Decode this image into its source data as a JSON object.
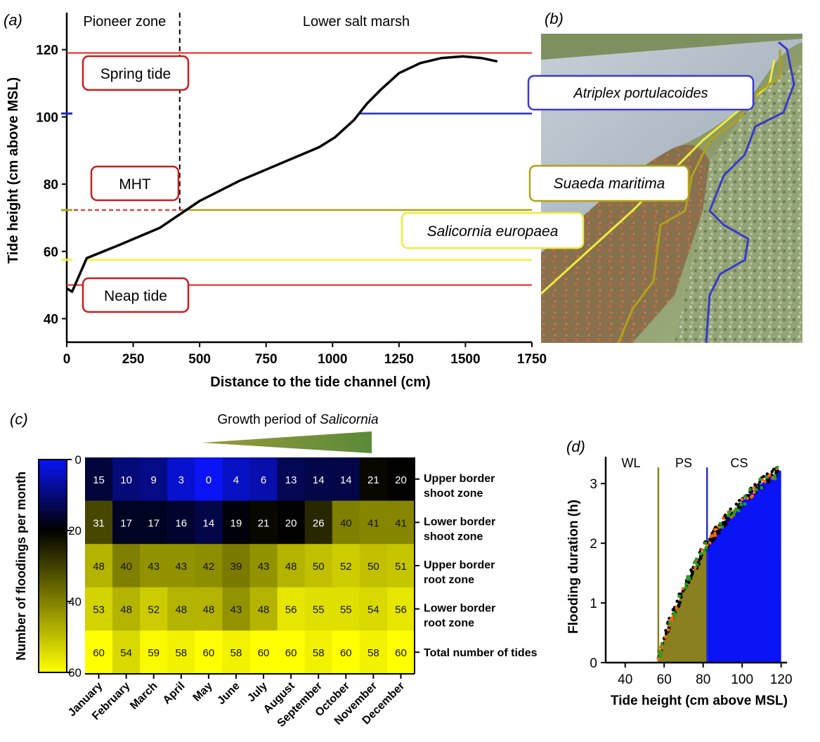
{
  "panel_labels": {
    "a": "(a)",
    "b": "(b)",
    "c": "(c)",
    "d": "(d)"
  },
  "chart_data": [
    {
      "id": "a",
      "type": "line",
      "xlabel": "Distance to the tide channel (cm)",
      "ylabel": "Tide height (cm above MSL)",
      "xlim": [
        0,
        1750
      ],
      "ylim": [
        33,
        131
      ],
      "xticks": [
        0,
        250,
        500,
        750,
        1000,
        1250,
        1500,
        1750
      ],
      "yticks": [
        40,
        60,
        80,
        100,
        120
      ],
      "zones": [
        {
          "label": "Pioneer zone"
        },
        {
          "label": "Lower salt marsh"
        }
      ],
      "zone_boundary_x": 425,
      "profile": {
        "x": [
          0,
          20,
          75,
          200,
          350,
          500,
          650,
          800,
          950,
          1010,
          1080,
          1130,
          1180,
          1250,
          1330,
          1410,
          1490,
          1560,
          1620
        ],
        "y": [
          49,
          48,
          58,
          62,
          67,
          75,
          81,
          86,
          91,
          94,
          99,
          104,
          108,
          113,
          116,
          117.5,
          118,
          117.5,
          116.5
        ]
      },
      "reference_lines": [
        {
          "label": "Spring tide",
          "y": 119,
          "color": "#e8261d",
          "style": "solid"
        },
        {
          "label": "MHT",
          "y": 72.3,
          "color": "#e8261d",
          "style": "dashed"
        },
        {
          "label": "Neap tide",
          "y": 50,
          "color": "#e8261d",
          "style": "solid"
        }
      ],
      "species_levels": [
        {
          "label": "Atriplex portulacoides",
          "y": 101,
          "x_start": 1100,
          "color": "#2030c8"
        },
        {
          "label": "Suaeda maritima",
          "y": 72.3,
          "x_start": 440,
          "color": "#b2a31a"
        },
        {
          "label": "Salicornia europaea",
          "y": 57.5,
          "x_start": 75,
          "color": "#f2f23a"
        }
      ]
    },
    {
      "id": "c",
      "type": "heatmap",
      "title_prefix": "Growth period of ",
      "title_italic": "Salicornia",
      "colorbar_label": "Number of floodings per month",
      "colorbar_ticks": [
        0,
        20,
        40,
        60
      ],
      "colorbar_range": [
        0,
        60
      ],
      "columns": [
        "January",
        "February",
        "March",
        "April",
        "May",
        "June",
        "July",
        "August",
        "September",
        "October",
        "November",
        "December"
      ],
      "rows": [
        {
          "label": [
            "Upper border",
            "shoot zone"
          ],
          "values": [
            15,
            10,
            9,
            3,
            0,
            4,
            6,
            13,
            14,
            14,
            21,
            20
          ]
        },
        {
          "label": [
            "Lower border",
            "shoot zone"
          ],
          "values": [
            31,
            17,
            17,
            16,
            14,
            19,
            21,
            20,
            26,
            40,
            41,
            41
          ]
        },
        {
          "label": [
            "Upper border",
            "root zone"
          ],
          "values": [
            48,
            40,
            43,
            43,
            42,
            39,
            43,
            48,
            50,
            52,
            50,
            51
          ]
        },
        {
          "label": [
            "Lower border",
            "root zone"
          ],
          "values": [
            53,
            48,
            52,
            48,
            48,
            43,
            48,
            56,
            55,
            55,
            54,
            56
          ]
        },
        {
          "label": [
            "Total number of tides"
          ],
          "values": [
            60,
            54,
            59,
            58,
            60,
            58,
            60,
            60,
            58,
            60,
            58,
            60
          ]
        }
      ]
    },
    {
      "id": "d",
      "type": "scatter",
      "xlabel": "Tide height (cm above MSL)",
      "ylabel": "Flooding duration (h)",
      "xlim": [
        30,
        123
      ],
      "ylim": [
        0,
        3.45
      ],
      "xticks": [
        40,
        60,
        80,
        100,
        120
      ],
      "yticks": [
        0,
        1,
        2,
        3
      ],
      "zones": [
        "WL",
        "PS",
        "CS"
      ],
      "zone_boundaries": [
        {
          "x": 57,
          "color": "#8a8020"
        },
        {
          "x": 82,
          "color": "#2a33c8"
        }
      ],
      "zone_fill_colors": [
        "#8a8020",
        "#0a14f5"
      ],
      "series": [
        {
          "color": "#000000"
        },
        {
          "color": "#ff6600"
        },
        {
          "color": "#22a022"
        }
      ],
      "curve": {
        "x": [
          56,
          57,
          58,
          60,
          62,
          65,
          68,
          70,
          72,
          75,
          78,
          80,
          82,
          85,
          88,
          90,
          93,
          96,
          100,
          104,
          108,
          112,
          116,
          118,
          120
        ],
        "y": [
          0,
          0.08,
          0.2,
          0.42,
          0.6,
          0.85,
          1.08,
          1.22,
          1.35,
          1.55,
          1.75,
          1.88,
          2.0,
          2.12,
          2.25,
          2.33,
          2.45,
          2.56,
          2.7,
          2.83,
          2.95,
          3.06,
          3.15,
          3.2,
          3.22
        ]
      }
    }
  ],
  "photo": {
    "description_labels": [
      "Atriplex portulacoides",
      "Suaeda maritima",
      "Salicornia europaea"
    ],
    "colors": {
      "atriplex": "#3a3acc",
      "suaeda": "#b0a21a",
      "salicornia": "#ecec3c"
    }
  }
}
